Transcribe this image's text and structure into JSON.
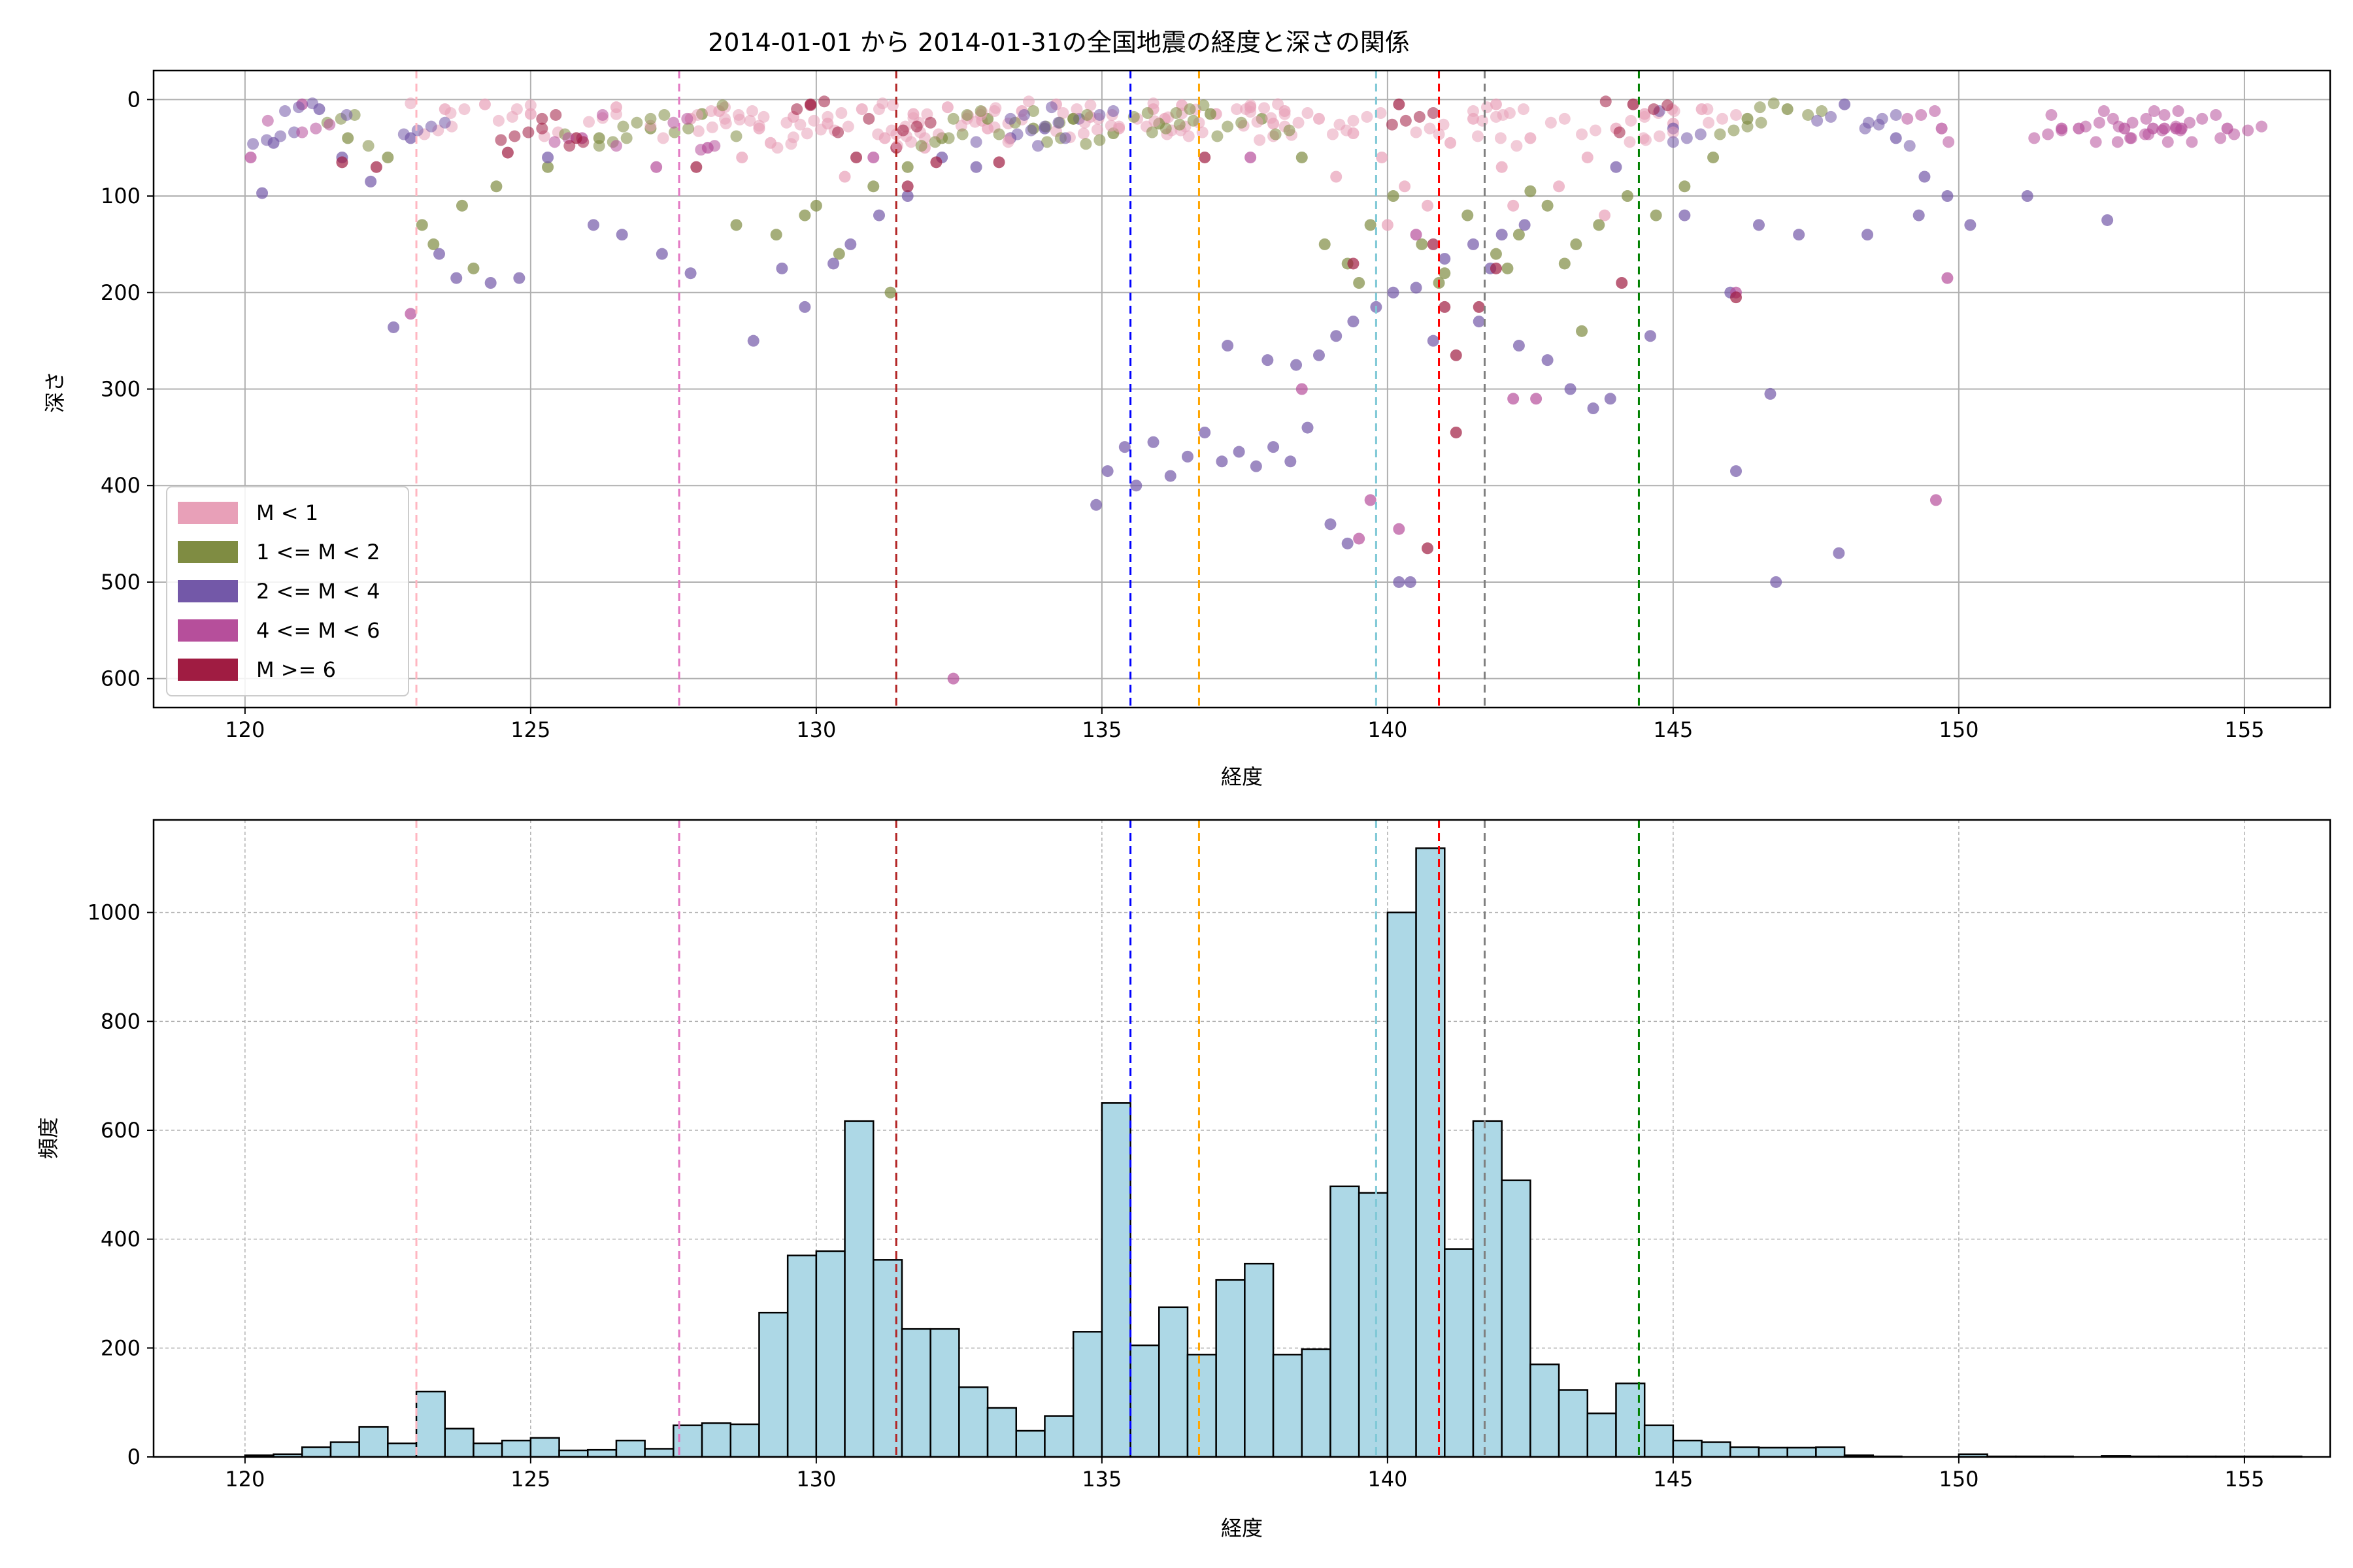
{
  "chart_data": [
    {
      "type": "scatter",
      "title": "2014-01-01 から 2014-01-31の全国地震の経度と深さの関係",
      "xlabel": "経度",
      "ylabel": "深さ",
      "xlim": [
        118.4,
        156.5
      ],
      "ylim": [
        630,
        -30
      ],
      "y_inverted": true,
      "xticks": [
        120,
        125,
        130,
        135,
        140,
        145,
        150,
        155
      ],
      "yticks": [
        0,
        100,
        200,
        300,
        400,
        500,
        600
      ],
      "grid": true,
      "legend_position": "lower-left",
      "legend": [
        {
          "label": "M < 1",
          "color": "#e8a0b8"
        },
        {
          "label": "1 <= M < 2",
          "color": "#7f8c42"
        },
        {
          "label": "2 <= M < 4",
          "color": "#7358a8"
        },
        {
          "label": "4 <= M < 6",
          "color": "#b64f9b"
        },
        {
          "label": "M >= 6",
          "color": "#a01c42"
        }
      ],
      "vlines": [
        {
          "x": 123.0,
          "color": "#ffb6c1"
        },
        {
          "x": 127.6,
          "color": "#e377c2"
        },
        {
          "x": 131.4,
          "color": "#b22222"
        },
        {
          "x": 135.5,
          "color": "#0000ff"
        },
        {
          "x": 136.7,
          "color": "#ffa500"
        },
        {
          "x": 139.8,
          "color": "#7fc8d6"
        },
        {
          "x": 140.9,
          "color": "#ff0000"
        },
        {
          "x": 141.7,
          "color": "#808080"
        },
        {
          "x": 144.4,
          "color": "#008000"
        }
      ],
      "series": [
        {
          "name": "M < 1",
          "points": [
            [
              123.5,
              10
            ],
            [
              124.2,
              5
            ],
            [
              125.0,
              15
            ],
            [
              126.5,
              8
            ],
            [
              127.8,
              20
            ],
            [
              128.3,
              12
            ],
            [
              129.0,
              30
            ],
            [
              129.6,
              18
            ],
            [
              130.2,
              25
            ],
            [
              130.8,
              10
            ],
            [
              131.2,
              40
            ],
            [
              131.7,
              15
            ],
            [
              132.3,
              8
            ],
            [
              132.9,
              22
            ],
            [
              133.6,
              12
            ],
            [
              134.2,
              5
            ],
            [
              134.8,
              18
            ],
            [
              135.3,
              30
            ],
            [
              135.9,
              10
            ],
            [
              136.4,
              6
            ],
            [
              137.0,
              15
            ],
            [
              137.6,
              8
            ],
            [
              138.2,
              12
            ],
            [
              138.8,
              20
            ],
            [
              139.4,
              35
            ],
            [
              139.9,
              60
            ],
            [
              140.3,
              90
            ],
            [
              140.7,
              110
            ],
            [
              141.1,
              45
            ],
            [
              141.5,
              20
            ],
            [
              142.0,
              70
            ],
            [
              142.5,
              40
            ],
            [
              143.0,
              90
            ],
            [
              143.5,
              60
            ],
            [
              144.0,
              30
            ],
            [
              144.5,
              15
            ],
            [
              145.0,
              25
            ],
            [
              145.5,
              10
            ],
            [
              129.2,
              45
            ],
            [
              128.7,
              60
            ],
            [
              130.5,
              80
            ],
            [
              131.9,
              50
            ],
            [
              139.1,
              80
            ],
            [
              140.0,
              130
            ],
            [
              142.2,
              110
            ],
            [
              143.8,
              120
            ],
            [
              141.9,
              5
            ],
            [
              138.0,
              25
            ],
            [
              136.1,
              20
            ],
            [
              133.0,
              30
            ]
          ]
        },
        {
          "name": "1 <= M < 2",
          "points": [
            [
              123.1,
              130
            ],
            [
              123.3,
              150
            ],
            [
              123.8,
              110
            ],
            [
              124.4,
              90
            ],
            [
              125.3,
              70
            ],
            [
              126.2,
              40
            ],
            [
              127.1,
              30
            ],
            [
              128.0,
              15
            ],
            [
              128.6,
              130
            ],
            [
              129.3,
              140
            ],
            [
              129.8,
              120
            ],
            [
              130.4,
              160
            ],
            [
              131.0,
              90
            ],
            [
              131.6,
              70
            ],
            [
              132.2,
              40
            ],
            [
              133.0,
              20
            ],
            [
              133.8,
              30
            ],
            [
              134.5,
              20
            ],
            [
              135.2,
              35
            ],
            [
              136.0,
              25
            ],
            [
              136.9,
              15
            ],
            [
              137.8,
              20
            ],
            [
              138.5,
              60
            ],
            [
              138.9,
              150
            ],
            [
              139.3,
              170
            ],
            [
              139.7,
              130
            ],
            [
              140.1,
              100
            ],
            [
              140.6,
              150
            ],
            [
              141.0,
              180
            ],
            [
              141.4,
              120
            ],
            [
              141.9,
              160
            ],
            [
              142.3,
              140
            ],
            [
              142.8,
              110
            ],
            [
              143.3,
              150
            ],
            [
              143.7,
              130
            ],
            [
              144.2,
              100
            ],
            [
              144.7,
              120
            ],
            [
              145.2,
              90
            ],
            [
              145.7,
              60
            ],
            [
              146.3,
              20
            ],
            [
              147.0,
              10
            ],
            [
              139.5,
              190
            ],
            [
              140.9,
              190
            ],
            [
              142.1,
              175
            ],
            [
              143.1,
              170
            ],
            [
              124.0,
              175
            ],
            [
              122.5,
              60
            ],
            [
              121.8,
              40
            ],
            [
              131.3,
              200
            ],
            [
              130.0,
              110
            ],
            [
              142.5,
              95
            ],
            [
              143.4,
              240
            ]
          ]
        },
        {
          "name": "2 <= M < 4",
          "points": [
            [
              120.3,
              97
            ],
            [
              120.5,
              45
            ],
            [
              121.3,
              10
            ],
            [
              121.7,
              60
            ],
            [
              122.2,
              85
            ],
            [
              122.6,
              236
            ],
            [
              122.9,
              40
            ],
            [
              123.4,
              160
            ],
            [
              123.7,
              185
            ],
            [
              124.3,
              190
            ],
            [
              124.8,
              185
            ],
            [
              125.3,
              60
            ],
            [
              126.1,
              130
            ],
            [
              126.6,
              140
            ],
            [
              127.3,
              160
            ],
            [
              127.8,
              180
            ],
            [
              128.9,
              250
            ],
            [
              129.4,
              175
            ],
            [
              129.8,
              215
            ],
            [
              130.3,
              170
            ],
            [
              130.6,
              150
            ],
            [
              131.1,
              120
            ],
            [
              131.6,
              100
            ],
            [
              132.2,
              60
            ],
            [
              132.8,
              70
            ],
            [
              133.4,
              40
            ],
            [
              134.0,
              30
            ],
            [
              134.6,
              20
            ],
            [
              134.9,
              420
            ],
            [
              135.1,
              385
            ],
            [
              135.4,
              360
            ],
            [
              135.6,
              400
            ],
            [
              135.9,
              355
            ],
            [
              136.2,
              390
            ],
            [
              136.5,
              370
            ],
            [
              136.8,
              345
            ],
            [
              137.1,
              375
            ],
            [
              137.4,
              365
            ],
            [
              137.7,
              380
            ],
            [
              138.0,
              360
            ],
            [
              138.3,
              375
            ],
            [
              138.6,
              340
            ],
            [
              137.2,
              255
            ],
            [
              137.9,
              270
            ],
            [
              138.4,
              275
            ],
            [
              138.8,
              265
            ],
            [
              139.1,
              245
            ],
            [
              139.4,
              230
            ],
            [
              139.8,
              215
            ],
            [
              140.1,
              200
            ],
            [
              140.5,
              195
            ],
            [
              141.0,
              165
            ],
            [
              141.5,
              150
            ],
            [
              142.0,
              140
            ],
            [
              142.4,
              130
            ],
            [
              142.8,
              270
            ],
            [
              143.2,
              300
            ],
            [
              143.6,
              320
            ],
            [
              143.9,
              310
            ],
            [
              139.0,
              440
            ],
            [
              139.3,
              460
            ],
            [
              140.2,
              500
            ],
            [
              140.4,
              500
            ],
            [
              140.8,
              250
            ],
            [
              141.6,
              230
            ],
            [
              141.8,
              175
            ],
            [
              142.3,
              255
            ],
            [
              144.6,
              245
            ],
            [
              145.2,
              120
            ],
            [
              146.0,
              200
            ],
            [
              146.5,
              130
            ],
            [
              146.8,
              500
            ],
            [
              147.2,
              140
            ],
            [
              147.9,
              470
            ],
            [
              148.4,
              140
            ],
            [
              149.3,
              120
            ],
            [
              149.8,
              100
            ],
            [
              150.2,
              130
            ],
            [
              151.2,
              100
            ],
            [
              152.6,
              125
            ],
            [
              149.4,
              80
            ],
            [
              148.9,
              40
            ],
            [
              148.0,
              5
            ],
            [
              146.1,
              385
            ],
            [
              146.7,
              305
            ],
            [
              144.0,
              70
            ],
            [
              145.0,
              30
            ]
          ]
        },
        {
          "name": "4 <= M < 6",
          "points": [
            [
              120.1,
              60
            ],
            [
              121.0,
              5
            ],
            [
              122.9,
              222
            ],
            [
              125.9,
              40
            ],
            [
              127.2,
              70
            ],
            [
              128.1,
              50
            ],
            [
              131.0,
              60
            ],
            [
              132.4,
              600
            ],
            [
              137.6,
              60
            ],
            [
              138.5,
              300
            ],
            [
              139.5,
              455
            ],
            [
              139.7,
              415
            ],
            [
              140.2,
              445
            ],
            [
              142.2,
              310
            ],
            [
              142.6,
              310
            ],
            [
              146.1,
              200
            ],
            [
              149.7,
              30
            ],
            [
              149.8,
              185
            ],
            [
              149.6,
              415
            ],
            [
              151.8,
              30
            ],
            [
              152.1,
              30
            ],
            [
              152.9,
              30
            ],
            [
              153.4,
              30
            ],
            [
              153.6,
              30
            ],
            [
              153.8,
              30
            ],
            [
              153.9,
              30
            ],
            [
              154.7,
              30
            ],
            [
              140.5,
              140
            ]
          ]
        },
        {
          "name": "M >= 6",
          "points": [
            [
              121.7,
              65
            ],
            [
              122.3,
              70
            ],
            [
              124.6,
              55
            ],
            [
              125.8,
              40
            ],
            [
              127.9,
              70
            ],
            [
              129.9,
              5
            ],
            [
              130.7,
              60
            ],
            [
              131.4,
              50
            ],
            [
              131.6,
              90
            ],
            [
              132.1,
              65
            ],
            [
              133.2,
              65
            ],
            [
              136.8,
              60
            ],
            [
              139.4,
              170
            ],
            [
              140.2,
              5
            ],
            [
              140.8,
              150
            ],
            [
              141.0,
              215
            ],
            [
              141.2,
              265
            ],
            [
              141.6,
              215
            ],
            [
              141.9,
              175
            ],
            [
              140.7,
              465
            ],
            [
              141.2,
              345
            ],
            [
              144.1,
              190
            ],
            [
              146.1,
              205
            ],
            [
              144.3,
              5
            ]
          ]
        }
      ]
    },
    {
      "type": "bar",
      "xlabel": "経度",
      "ylabel": "頻度",
      "xlim": [
        118.4,
        156.5
      ],
      "ylim": [
        0,
        1170
      ],
      "xticks": [
        120,
        125,
        130,
        135,
        140,
        145,
        150,
        155
      ],
      "yticks": [
        0,
        200,
        400,
        600,
        800,
        1000
      ],
      "grid": true,
      "bar_color": "#add8e6",
      "bin_start": 120.0,
      "bin_width": 0.5,
      "counts": [
        3,
        5,
        18,
        27,
        55,
        25,
        120,
        52,
        25,
        30,
        35,
        12,
        13,
        30,
        15,
        58,
        62,
        60,
        265,
        370,
        378,
        617,
        362,
        235,
        235,
        128,
        90,
        48,
        75,
        230,
        650,
        205,
        275,
        188,
        325,
        355,
        188,
        198,
        497,
        485,
        1000,
        1118,
        382,
        617,
        508,
        170,
        123,
        80,
        135,
        58,
        30,
        27,
        18,
        17,
        17,
        18,
        3,
        1,
        0,
        0,
        5,
        1,
        1,
        1,
        0,
        2,
        1,
        1,
        1,
        1,
        1,
        1,
        0,
        0,
        2
      ]
    }
  ]
}
